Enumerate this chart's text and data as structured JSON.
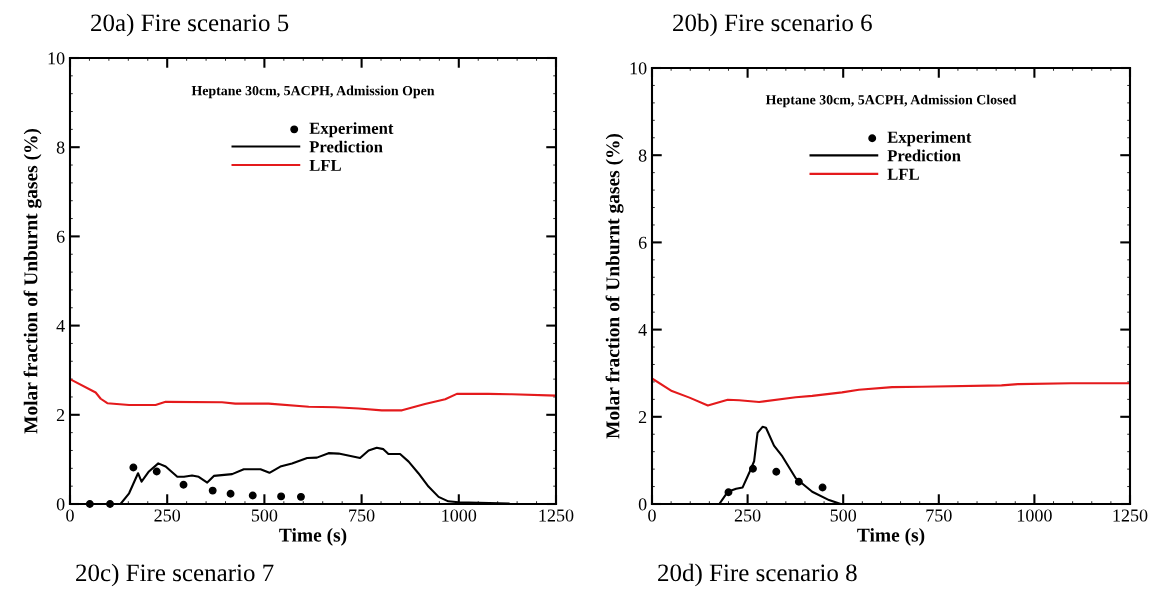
{
  "chart_data": [
    {
      "type": "line",
      "title": "20a) Fire scenario 5",
      "xlabel": "Time (s)",
      "ylabel": "Molar fraction of Unburnt gases (%)",
      "legend_title": "Heptane 30cm, 5ACPH, Admission Open",
      "legend": "top",
      "grid": false,
      "xlim": [
        0,
        1250
      ],
      "ylim": [
        0,
        10
      ],
      "xticks": [
        0,
        250,
        500,
        750,
        1000,
        1250
      ],
      "yticks": [
        0,
        2,
        4,
        6,
        8,
        10
      ],
      "annotations": [
        "20c) Fire scenario 7"
      ],
      "series": [
        {
          "name": "Experiment",
          "type": "scatter",
          "marker": "circle",
          "color": "#000000",
          "x": [
            51,
            103,
            163,
            223,
            292,
            367,
            413,
            470,
            543,
            594
          ],
          "values": [
            0,
            0,
            0.82,
            0.73,
            0.43,
            0.3,
            0.23,
            0.19,
            0.17,
            0.16
          ]
        },
        {
          "name": "Prediction",
          "color": "#000000",
          "x": [
            0,
            130,
            152,
            175,
            184,
            203,
            227,
            246,
            276,
            293,
            314,
            331,
            353,
            370,
            417,
            447,
            490,
            513,
            541,
            571,
            610,
            635,
            665,
            691,
            746,
            768,
            789,
            806,
            819,
            849,
            871,
            896,
            922,
            948,
            973,
            999,
            1128
          ],
          "values": [
            0,
            0,
            0.24,
            0.69,
            0.5,
            0.73,
            0.91,
            0.84,
            0.61,
            0.61,
            0.64,
            0.61,
            0.48,
            0.63,
            0.67,
            0.78,
            0.78,
            0.7,
            0.84,
            0.91,
            1.03,
            1.04,
            1.14,
            1.13,
            1.03,
            1.2,
            1.26,
            1.23,
            1.12,
            1.12,
            0.95,
            0.69,
            0.39,
            0.16,
            0.06,
            0.04,
            0.01
          ]
        },
        {
          "name": "LFL",
          "color": "#e41a1c",
          "x": [
            0,
            66,
            79,
            96,
            152,
            220,
            246,
            391,
            425,
            511,
            614,
            682,
            742,
            802,
            854,
            913,
            965,
            995,
            1076,
            1136,
            1250
          ],
          "values": [
            2.8,
            2.5,
            2.36,
            2.26,
            2.22,
            2.22,
            2.29,
            2.28,
            2.25,
            2.25,
            2.18,
            2.17,
            2.14,
            2.1,
            2.1,
            2.24,
            2.35,
            2.47,
            2.47,
            2.46,
            2.43
          ]
        }
      ]
    },
    {
      "type": "line",
      "title": "20b) Fire scenario 6",
      "xlabel": "Time (s)",
      "ylabel": "Molar fraction of Unburnt gases (%)",
      "legend_title": "Heptane 30cm, 5ACPH, Admission Closed",
      "legend": "top",
      "grid": false,
      "xlim": [
        0,
        1250
      ],
      "ylim": [
        0,
        10
      ],
      "xticks": [
        0,
        250,
        500,
        750,
        1000,
        1250
      ],
      "yticks": [
        0,
        2,
        4,
        6,
        8,
        10
      ],
      "annotations": [
        "20d) Fire scenario 8"
      ],
      "series": [
        {
          "name": "Experiment",
          "type": "scatter",
          "marker": "circle",
          "color": "#000000",
          "x": [
            200,
            264,
            325,
            384,
            446
          ],
          "values": [
            0.27,
            0.81,
            0.74,
            0.51,
            0.38
          ]
        },
        {
          "name": "Prediction",
          "color": "#000000",
          "x": [
            176,
            198,
            220,
            237,
            254,
            267,
            276,
            289,
            298,
            319,
            341,
            376,
            419,
            463,
            493
          ],
          "values": [
            0,
            0.28,
            0.35,
            0.38,
            0.71,
            0.98,
            1.63,
            1.77,
            1.75,
            1.34,
            1.09,
            0.59,
            0.28,
            0.09,
            0
          ]
        },
        {
          "name": "LFL",
          "color": "#e41a1c",
          "x": [
            0,
            52,
            98,
            146,
            198,
            228,
            280,
            376,
            419,
            497,
            541,
            628,
            706,
            914,
            957,
            1096,
            1250
          ],
          "values": [
            2.88,
            2.59,
            2.44,
            2.26,
            2.39,
            2.38,
            2.34,
            2.45,
            2.48,
            2.56,
            2.62,
            2.68,
            2.69,
            2.72,
            2.75,
            2.77,
            2.77
          ]
        }
      ]
    }
  ]
}
